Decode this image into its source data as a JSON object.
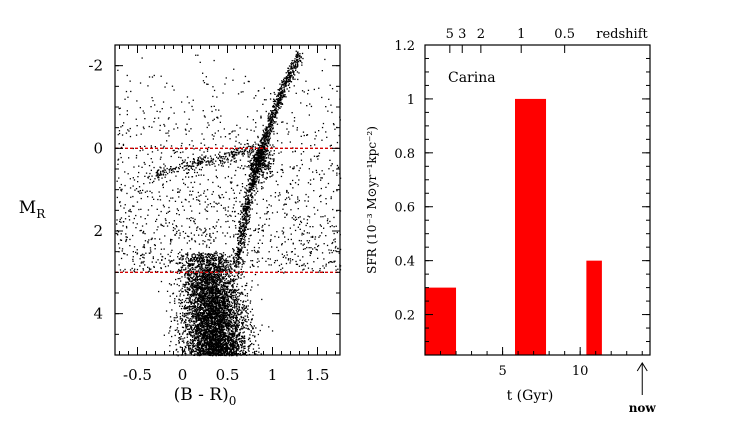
{
  "chart_data": [
    {
      "type": "scatter",
      "title": "",
      "xlabel": "(B - R)",
      "xlabel_sub": "0",
      "ylabel": "M",
      "ylabel_sub": "R",
      "xlim": [
        -0.75,
        1.75
      ],
      "ylim": [
        5.0,
        -2.5
      ],
      "y_inverted": true,
      "x_ticks": [
        -0.5,
        0,
        0.5,
        1,
        1.5
      ],
      "x_tick_labels": [
        "-0.5",
        "0",
        "0.5",
        "1",
        "1.5"
      ],
      "y_ticks": [
        -2,
        0,
        2,
        4
      ],
      "y_tick_labels": [
        "-2",
        "0",
        "2",
        "4"
      ],
      "reference_lines": [
        {
          "orientation": "horizontal",
          "y": 0,
          "color": "#d40000",
          "style": "dashed"
        },
        {
          "orientation": "horizontal",
          "y": 3,
          "color": "#d40000",
          "style": "dashed"
        }
      ],
      "features": {
        "main_sequence": {
          "color_range": [
            0.0,
            0.6
          ],
          "mag_range": [
            2.5,
            5.0
          ]
        },
        "red_giant_branch": [
          {
            "x": 0.6,
            "y": 2.8
          },
          {
            "x": 0.7,
            "y": 1.5
          },
          {
            "x": 0.8,
            "y": 0.5
          },
          {
            "x": 0.95,
            "y": -0.5
          },
          {
            "x": 1.1,
            "y": -1.4
          },
          {
            "x": 1.3,
            "y": -2.3
          }
        ],
        "red_clump": {
          "x": 0.85,
          "y": 0.3
        },
        "horizontal_branch": {
          "x_range": [
            -0.3,
            0.75
          ],
          "y_range": [
            0.6,
            0.0
          ]
        }
      },
      "point_color": "#000000"
    },
    {
      "type": "bar",
      "title": "",
      "annotation": "Carina",
      "xlabel": "t (Gyr)",
      "ylabel": "SFR (10⁻³ M⊙yr⁻¹kpc⁻²)",
      "xlim": [
        0,
        14.5
      ],
      "ylim": [
        0.05,
        1.2
      ],
      "bars": [
        {
          "x_start": 0,
          "x_end": 2,
          "value": 0.3
        },
        {
          "x_start": 5.8,
          "x_end": 7.8,
          "value": 1.0
        },
        {
          "x_start": 10.4,
          "x_end": 11.4,
          "value": 0.4
        }
      ],
      "bar_color": "#ff0000",
      "x_ticks": [
        5,
        10
      ],
      "x_tick_labels": [
        "5",
        "10"
      ],
      "y_ticks": [
        0.2,
        0.4,
        0.6,
        0.8,
        1.0,
        1.2
      ],
      "y_tick_labels": [
        "0.2",
        "0.4",
        "0.6",
        "0.8",
        "1",
        "1.2"
      ],
      "top_axis": {
        "label": "redshift",
        "ticks": [
          {
            "t": 1.6,
            "label": "5"
          },
          {
            "t": 2.4,
            "label": "3"
          },
          {
            "t": 3.6,
            "label": "2"
          },
          {
            "t": 6.2,
            "label": "1"
          },
          {
            "t": 9.0,
            "label": "0.5"
          }
        ]
      },
      "now_marker": {
        "t": 14.0,
        "label": "now"
      }
    }
  ]
}
